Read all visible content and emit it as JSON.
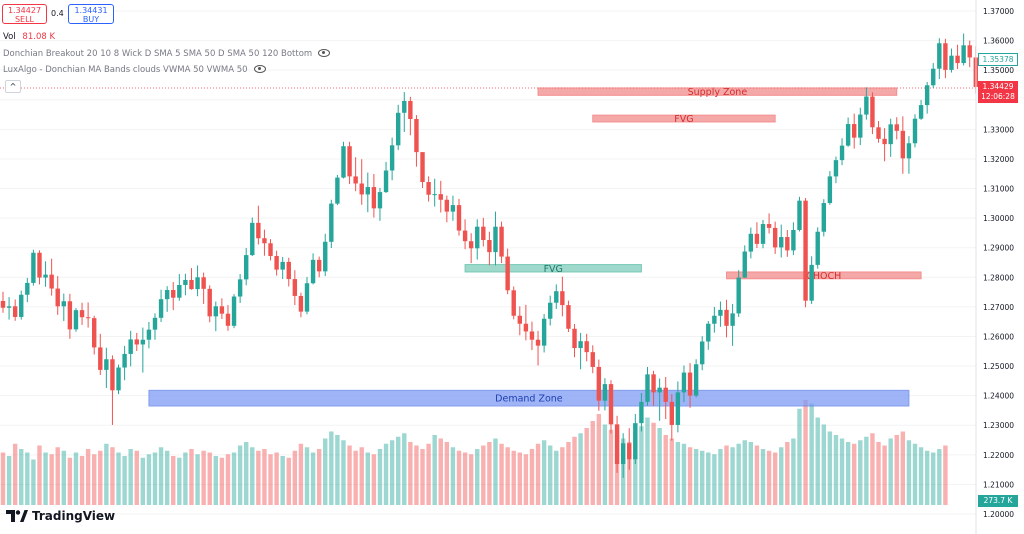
{
  "header": {
    "sell_price": "1.34427",
    "sell_label": "SELL",
    "spread": "0.4",
    "buy_price": "1.34431",
    "buy_label": "BUY",
    "volume_label": "Vol",
    "volume_value": "81.08 K",
    "indicator1": "Donchian Breakout 20 10 8 Wick D SMA 5 SMA 50 D SMA 50 120 Bottom",
    "indicator2": "LuxAlgo - Donchian MA Bands clouds VWMA 50 VWMA 50"
  },
  "price_axis": {
    "ticks": [
      "1.37000",
      "1.36000",
      "1.35000",
      "1.34000",
      "1.33000",
      "1.32000",
      "1.31000",
      "1.30000",
      "1.29000",
      "1.28000",
      "1.27000",
      "1.26000",
      "1.25000",
      "1.24000",
      "1.23000",
      "1.22000",
      "1.21000",
      "1.20000"
    ],
    "ma_tag": "1.35378",
    "last_price_tag": "1.34429",
    "countdown": "12:06:28",
    "volume_tag": "273.7 K"
  },
  "logo": {
    "text": "TradingView",
    "icon": "tradingview-logo-icon"
  },
  "colors": {
    "bull": "#26a69a",
    "bear": "#ef5350",
    "supply": "#f28b8b",
    "demand": "#7f9cf5",
    "fvg_green": "#7fcdbb"
  },
  "chart_data": {
    "type": "candlestick",
    "ylim": [
      1.195,
      1.373
    ],
    "zones": [
      {
        "label": "Supply Zone",
        "low": 1.3415,
        "high": 1.344,
        "from": 88,
        "to": 147
      },
      {
        "label": "FVG",
        "low": 1.3325,
        "high": 1.3348,
        "from": 97,
        "to": 127
      },
      {
        "label": "FVG",
        "low": 1.2818,
        "high": 1.2843,
        "from": 76,
        "to": 105
      },
      {
        "label": "CHOCH",
        "low": 1.2795,
        "high": 1.2818,
        "from": 119,
        "to": 151
      },
      {
        "label": "Demand Zone",
        "low": 1.2365,
        "high": 1.2418,
        "from": 24,
        "to": 149
      }
    ],
    "candles": [
      [
        1.272,
        1.2751,
        1.268,
        1.2697
      ],
      [
        1.2697,
        1.2733,
        1.2657,
        1.2702
      ],
      [
        1.2702,
        1.2725,
        1.2653,
        1.2666
      ],
      [
        1.2666,
        1.2755,
        1.2657,
        1.2741
      ],
      [
        1.2741,
        1.2798,
        1.2716,
        1.2781
      ],
      [
        1.2781,
        1.2893,
        1.2772,
        1.2883
      ],
      [
        1.2883,
        1.2891,
        1.2776,
        1.2799
      ],
      [
        1.2799,
        1.2854,
        1.2768,
        1.2809
      ],
      [
        1.2809,
        1.2863,
        1.2738,
        1.2762
      ],
      [
        1.2762,
        1.2804,
        1.2673,
        1.2702
      ],
      [
        1.2702,
        1.2745,
        1.2652,
        1.2719
      ],
      [
        1.2719,
        1.2744,
        1.2592,
        1.2624
      ],
      [
        1.2624,
        1.2696,
        1.2616,
        1.2689
      ],
      [
        1.2689,
        1.2714,
        1.2639,
        1.2665
      ],
      [
        1.2665,
        1.2715,
        1.263,
        1.2662
      ],
      [
        1.2662,
        1.267,
        1.2539,
        1.2563
      ],
      [
        1.2563,
        1.2609,
        1.247,
        1.2487
      ],
      [
        1.2487,
        1.2562,
        1.2426,
        1.2523
      ],
      [
        1.2523,
        1.2536,
        1.2301,
        1.2418
      ],
      [
        1.2418,
        1.2505,
        1.2405,
        1.2495
      ],
      [
        1.2495,
        1.2568,
        1.2452,
        1.2541
      ],
      [
        1.2541,
        1.2619,
        1.2499,
        1.259
      ],
      [
        1.259,
        1.2612,
        1.2551,
        1.2573
      ],
      [
        1.2573,
        1.263,
        1.2478,
        1.2589
      ],
      [
        1.2589,
        1.2649,
        1.256,
        1.2623
      ],
      [
        1.2623,
        1.2678,
        1.2589,
        1.2663
      ],
      [
        1.2663,
        1.2758,
        1.2649,
        1.2726
      ],
      [
        1.2726,
        1.277,
        1.2683,
        1.2757
      ],
      [
        1.2757,
        1.2784,
        1.2689,
        1.2731
      ],
      [
        1.2731,
        1.2811,
        1.2721,
        1.2774
      ],
      [
        1.2774,
        1.2812,
        1.2739,
        1.2791
      ],
      [
        1.2791,
        1.2831,
        1.2758,
        1.276
      ],
      [
        1.276,
        1.284,
        1.2736,
        1.28
      ],
      [
        1.28,
        1.2816,
        1.271,
        1.2761
      ],
      [
        1.2761,
        1.2773,
        1.2648,
        1.2668
      ],
      [
        1.2668,
        1.2718,
        1.2618,
        1.2702
      ],
      [
        1.2702,
        1.2729,
        1.2659,
        1.2677
      ],
      [
        1.2677,
        1.2706,
        1.2619,
        1.2636
      ],
      [
        1.2636,
        1.2743,
        1.2628,
        1.2735
      ],
      [
        1.2735,
        1.2811,
        1.2713,
        1.2793
      ],
      [
        1.2793,
        1.2899,
        1.2773,
        1.2875
      ],
      [
        1.2875,
        1.3002,
        1.2872,
        1.2984
      ],
      [
        1.2984,
        1.3042,
        1.2911,
        1.2932
      ],
      [
        1.2932,
        1.2961,
        1.2873,
        1.2915
      ],
      [
        1.2915,
        1.2929,
        1.2857,
        1.2872
      ],
      [
        1.2872,
        1.289,
        1.2806,
        1.2826
      ],
      [
        1.2826,
        1.2869,
        1.2794,
        1.2852
      ],
      [
        1.2852,
        1.2866,
        1.2769,
        1.2794
      ],
      [
        1.2794,
        1.2824,
        1.2706,
        1.2737
      ],
      [
        1.2737,
        1.2748,
        1.2665,
        1.2684
      ],
      [
        1.2684,
        1.2801,
        1.2675,
        1.278
      ],
      [
        1.278,
        1.2881,
        1.2776,
        1.2859
      ],
      [
        1.2859,
        1.287,
        1.28,
        1.282
      ],
      [
        1.282,
        1.2947,
        1.2804,
        1.292
      ],
      [
        1.292,
        1.3062,
        1.2899,
        1.3049
      ],
      [
        1.3049,
        1.3146,
        1.3044,
        1.3137
      ],
      [
        1.3137,
        1.3258,
        1.3134,
        1.3243
      ],
      [
        1.3243,
        1.3258,
        1.3115,
        1.3141
      ],
      [
        1.3141,
        1.3206,
        1.3091,
        1.3117
      ],
      [
        1.3117,
        1.3199,
        1.3045,
        1.308
      ],
      [
        1.308,
        1.3154,
        1.302,
        1.3105
      ],
      [
        1.3105,
        1.3149,
        1.3002,
        1.3033
      ],
      [
        1.3033,
        1.3102,
        1.2991,
        1.3088
      ],
      [
        1.3088,
        1.319,
        1.3085,
        1.3161
      ],
      [
        1.3161,
        1.3272,
        1.3128,
        1.3246
      ],
      [
        1.3246,
        1.3383,
        1.323,
        1.3356
      ],
      [
        1.3356,
        1.3426,
        1.3291,
        1.3396
      ],
      [
        1.3396,
        1.341,
        1.328,
        1.3335
      ],
      [
        1.3335,
        1.3348,
        1.3174,
        1.3223
      ],
      [
        1.3223,
        1.3223,
        1.3102,
        1.3122
      ],
      [
        1.3122,
        1.3141,
        1.3056,
        1.3079
      ],
      [
        1.3079,
        1.3133,
        1.3039,
        1.3081
      ],
      [
        1.3081,
        1.3126,
        1.3019,
        1.3062
      ],
      [
        1.3062,
        1.3076,
        1.2986,
        1.3022
      ],
      [
        1.3022,
        1.3076,
        1.2991,
        1.3044
      ],
      [
        1.3044,
        1.3065,
        1.2941,
        1.2958
      ],
      [
        1.2958,
        1.2996,
        1.2895,
        1.2922
      ],
      [
        1.2922,
        1.2949,
        1.2848,
        1.2898
      ],
      [
        1.2898,
        1.2996,
        1.286,
        1.2971
      ],
      [
        1.2971,
        1.3001,
        1.2904,
        1.2926
      ],
      [
        1.2926,
        1.2954,
        1.2841,
        1.2885
      ],
      [
        1.2885,
        1.3022,
        1.284,
        1.2971
      ],
      [
        1.2971,
        1.2988,
        1.2848,
        1.287
      ],
      [
        1.287,
        1.2897,
        1.2743,
        1.2756
      ],
      [
        1.2756,
        1.2769,
        1.2658,
        1.267
      ],
      [
        1.267,
        1.2702,
        1.2604,
        1.2643
      ],
      [
        1.2643,
        1.2707,
        1.2587,
        1.2617
      ],
      [
        1.2617,
        1.265,
        1.2554,
        1.2589
      ],
      [
        1.2589,
        1.2619,
        1.2502,
        1.2569
      ],
      [
        1.2569,
        1.2676,
        1.2546,
        1.266
      ],
      [
        1.266,
        1.2738,
        1.2637,
        1.2714
      ],
      [
        1.2714,
        1.2776,
        1.2693,
        1.2753
      ],
      [
        1.2753,
        1.2802,
        1.2668,
        1.2706
      ],
      [
        1.2706,
        1.2721,
        1.2615,
        1.2626
      ],
      [
        1.2626,
        1.2642,
        1.253,
        1.2561
      ],
      [
        1.2561,
        1.2612,
        1.2489,
        1.2584
      ],
      [
        1.2584,
        1.2609,
        1.2516,
        1.2547
      ],
      [
        1.2547,
        1.257,
        1.2476,
        1.2497
      ],
      [
        1.2497,
        1.2522,
        1.2349,
        1.2383
      ],
      [
        1.2383,
        1.2459,
        1.235,
        1.2439
      ],
      [
        1.2439,
        1.2452,
        1.2272,
        1.2303
      ],
      [
        1.2303,
        1.2332,
        1.2139,
        1.2169
      ],
      [
        1.2169,
        1.2273,
        1.2122,
        1.2239
      ],
      [
        1.2239,
        1.229,
        1.215,
        1.2185
      ],
      [
        1.2185,
        1.2338,
        1.2169,
        1.2307
      ],
      [
        1.2307,
        1.2409,
        1.2279,
        1.2379
      ],
      [
        1.2379,
        1.2497,
        1.2366,
        1.2472
      ],
      [
        1.2472,
        1.2484,
        1.2366,
        1.2411
      ],
      [
        1.2411,
        1.2458,
        1.2315,
        1.2427
      ],
      [
        1.2427,
        1.2463,
        1.2321,
        1.2379
      ],
      [
        1.2379,
        1.2405,
        1.2248,
        1.2301
      ],
      [
        1.2301,
        1.2448,
        1.2276,
        1.2411
      ],
      [
        1.2411,
        1.2502,
        1.2378,
        1.2478
      ],
      [
        1.2478,
        1.251,
        1.2359,
        1.24
      ],
      [
        1.24,
        1.2523,
        1.2394,
        1.2506
      ],
      [
        1.2506,
        1.2601,
        1.2486,
        1.2583
      ],
      [
        1.2583,
        1.2652,
        1.2555,
        1.2643
      ],
      [
        1.2643,
        1.27,
        1.2613,
        1.267
      ],
      [
        1.267,
        1.2718,
        1.2633,
        1.269
      ],
      [
        1.269,
        1.2724,
        1.2597,
        1.2636
      ],
      [
        1.2636,
        1.271,
        1.2568,
        1.2678
      ],
      [
        1.2678,
        1.2824,
        1.2666,
        1.2799
      ],
      [
        1.2799,
        1.2908,
        1.2798,
        1.2887
      ],
      [
        1.2887,
        1.2968,
        1.2864,
        1.2947
      ],
      [
        1.2947,
        1.2986,
        1.2899,
        1.2913
      ],
      [
        1.2913,
        1.2994,
        1.2898,
        1.298
      ],
      [
        1.298,
        1.3016,
        1.2948,
        1.2967
      ],
      [
        1.2967,
        1.2988,
        1.2879,
        1.2901
      ],
      [
        1.2901,
        1.2978,
        1.2867,
        1.2936
      ],
      [
        1.2936,
        1.296,
        1.2869,
        1.2891
      ],
      [
        1.2891,
        1.2986,
        1.2875,
        1.296
      ],
      [
        1.296,
        1.3072,
        1.2955,
        1.3059
      ],
      [
        1.3059,
        1.3068,
        1.2699,
        1.2721
      ],
      [
        1.2721,
        1.2871,
        1.271,
        1.2842
      ],
      [
        1.2842,
        1.2969,
        1.2829,
        1.2954
      ],
      [
        1.2954,
        1.3064,
        1.2938,
        1.3051
      ],
      [
        1.3051,
        1.3159,
        1.3045,
        1.3141
      ],
      [
        1.3141,
        1.3208,
        1.3118,
        1.3196
      ],
      [
        1.3196,
        1.327,
        1.3179,
        1.3245
      ],
      [
        1.3245,
        1.334,
        1.3241,
        1.3318
      ],
      [
        1.3318,
        1.3353,
        1.3235,
        1.3272
      ],
      [
        1.3272,
        1.3373,
        1.3247,
        1.335
      ],
      [
        1.335,
        1.3442,
        1.3333,
        1.3411
      ],
      [
        1.3411,
        1.3425,
        1.3284,
        1.3307
      ],
      [
        1.3307,
        1.3328,
        1.3255,
        1.3268
      ],
      [
        1.3268,
        1.3304,
        1.3192,
        1.325
      ],
      [
        1.325,
        1.3336,
        1.3207,
        1.3317
      ],
      [
        1.3317,
        1.3341,
        1.3266,
        1.3295
      ],
      [
        1.3295,
        1.3344,
        1.315,
        1.3202
      ],
      [
        1.3202,
        1.3277,
        1.315,
        1.3253
      ],
      [
        1.3253,
        1.3351,
        1.3239,
        1.3336
      ],
      [
        1.3336,
        1.3399,
        1.3332,
        1.3382
      ],
      [
        1.3382,
        1.346,
        1.3353,
        1.3449
      ],
      [
        1.3449,
        1.3524,
        1.344,
        1.3505
      ],
      [
        1.3505,
        1.3608,
        1.347,
        1.3591
      ],
      [
        1.3591,
        1.3606,
        1.3473,
        1.3501
      ],
      [
        1.3501,
        1.3573,
        1.3492,
        1.3549
      ],
      [
        1.3549,
        1.3586,
        1.3504,
        1.3524
      ],
      [
        1.3524,
        1.3624,
        1.3516,
        1.3584
      ],
      [
        1.3584,
        1.36,
        1.351,
        1.3543
      ],
      [
        1.3543,
        1.3581,
        1.3421,
        1.3443
      ]
    ],
    "volume": [
      30,
      28,
      35,
      32,
      30,
      26,
      34,
      30,
      29,
      33,
      31,
      27,
      30,
      28,
      32,
      29,
      31,
      35,
      33,
      30,
      28,
      32,
      31,
      27,
      29,
      30,
      33,
      31,
      28,
      27,
      30,
      32,
      29,
      31,
      30,
      28,
      27,
      29,
      30,
      34,
      36,
      33,
      31,
      32,
      29,
      30,
      28,
      27,
      31,
      35,
      33,
      30,
      32,
      38,
      42,
      40,
      37,
      34,
      31,
      33,
      30,
      29,
      32,
      35,
      37,
      39,
      41,
      36,
      34,
      32,
      35,
      40,
      38,
      36,
      33,
      31,
      30,
      29,
      32,
      34,
      36,
      38,
      35,
      33,
      31,
      30,
      29,
      32,
      35,
      37,
      34,
      31,
      33,
      36,
      39,
      41,
      44,
      48,
      52,
      46,
      43,
      40,
      38,
      36,
      41,
      45,
      50,
      47,
      44,
      40,
      38,
      36,
      35,
      33,
      32,
      31,
      30,
      29,
      32,
      34,
      33,
      35,
      37,
      36,
      34,
      32,
      31,
      30,
      33,
      36,
      38,
      55,
      60,
      58,
      50,
      46,
      42,
      40,
      38,
      36,
      35,
      37,
      39,
      41,
      36,
      34,
      38,
      40,
      42,
      37,
      35,
      33,
      31,
      30,
      32,
      34
    ]
  }
}
